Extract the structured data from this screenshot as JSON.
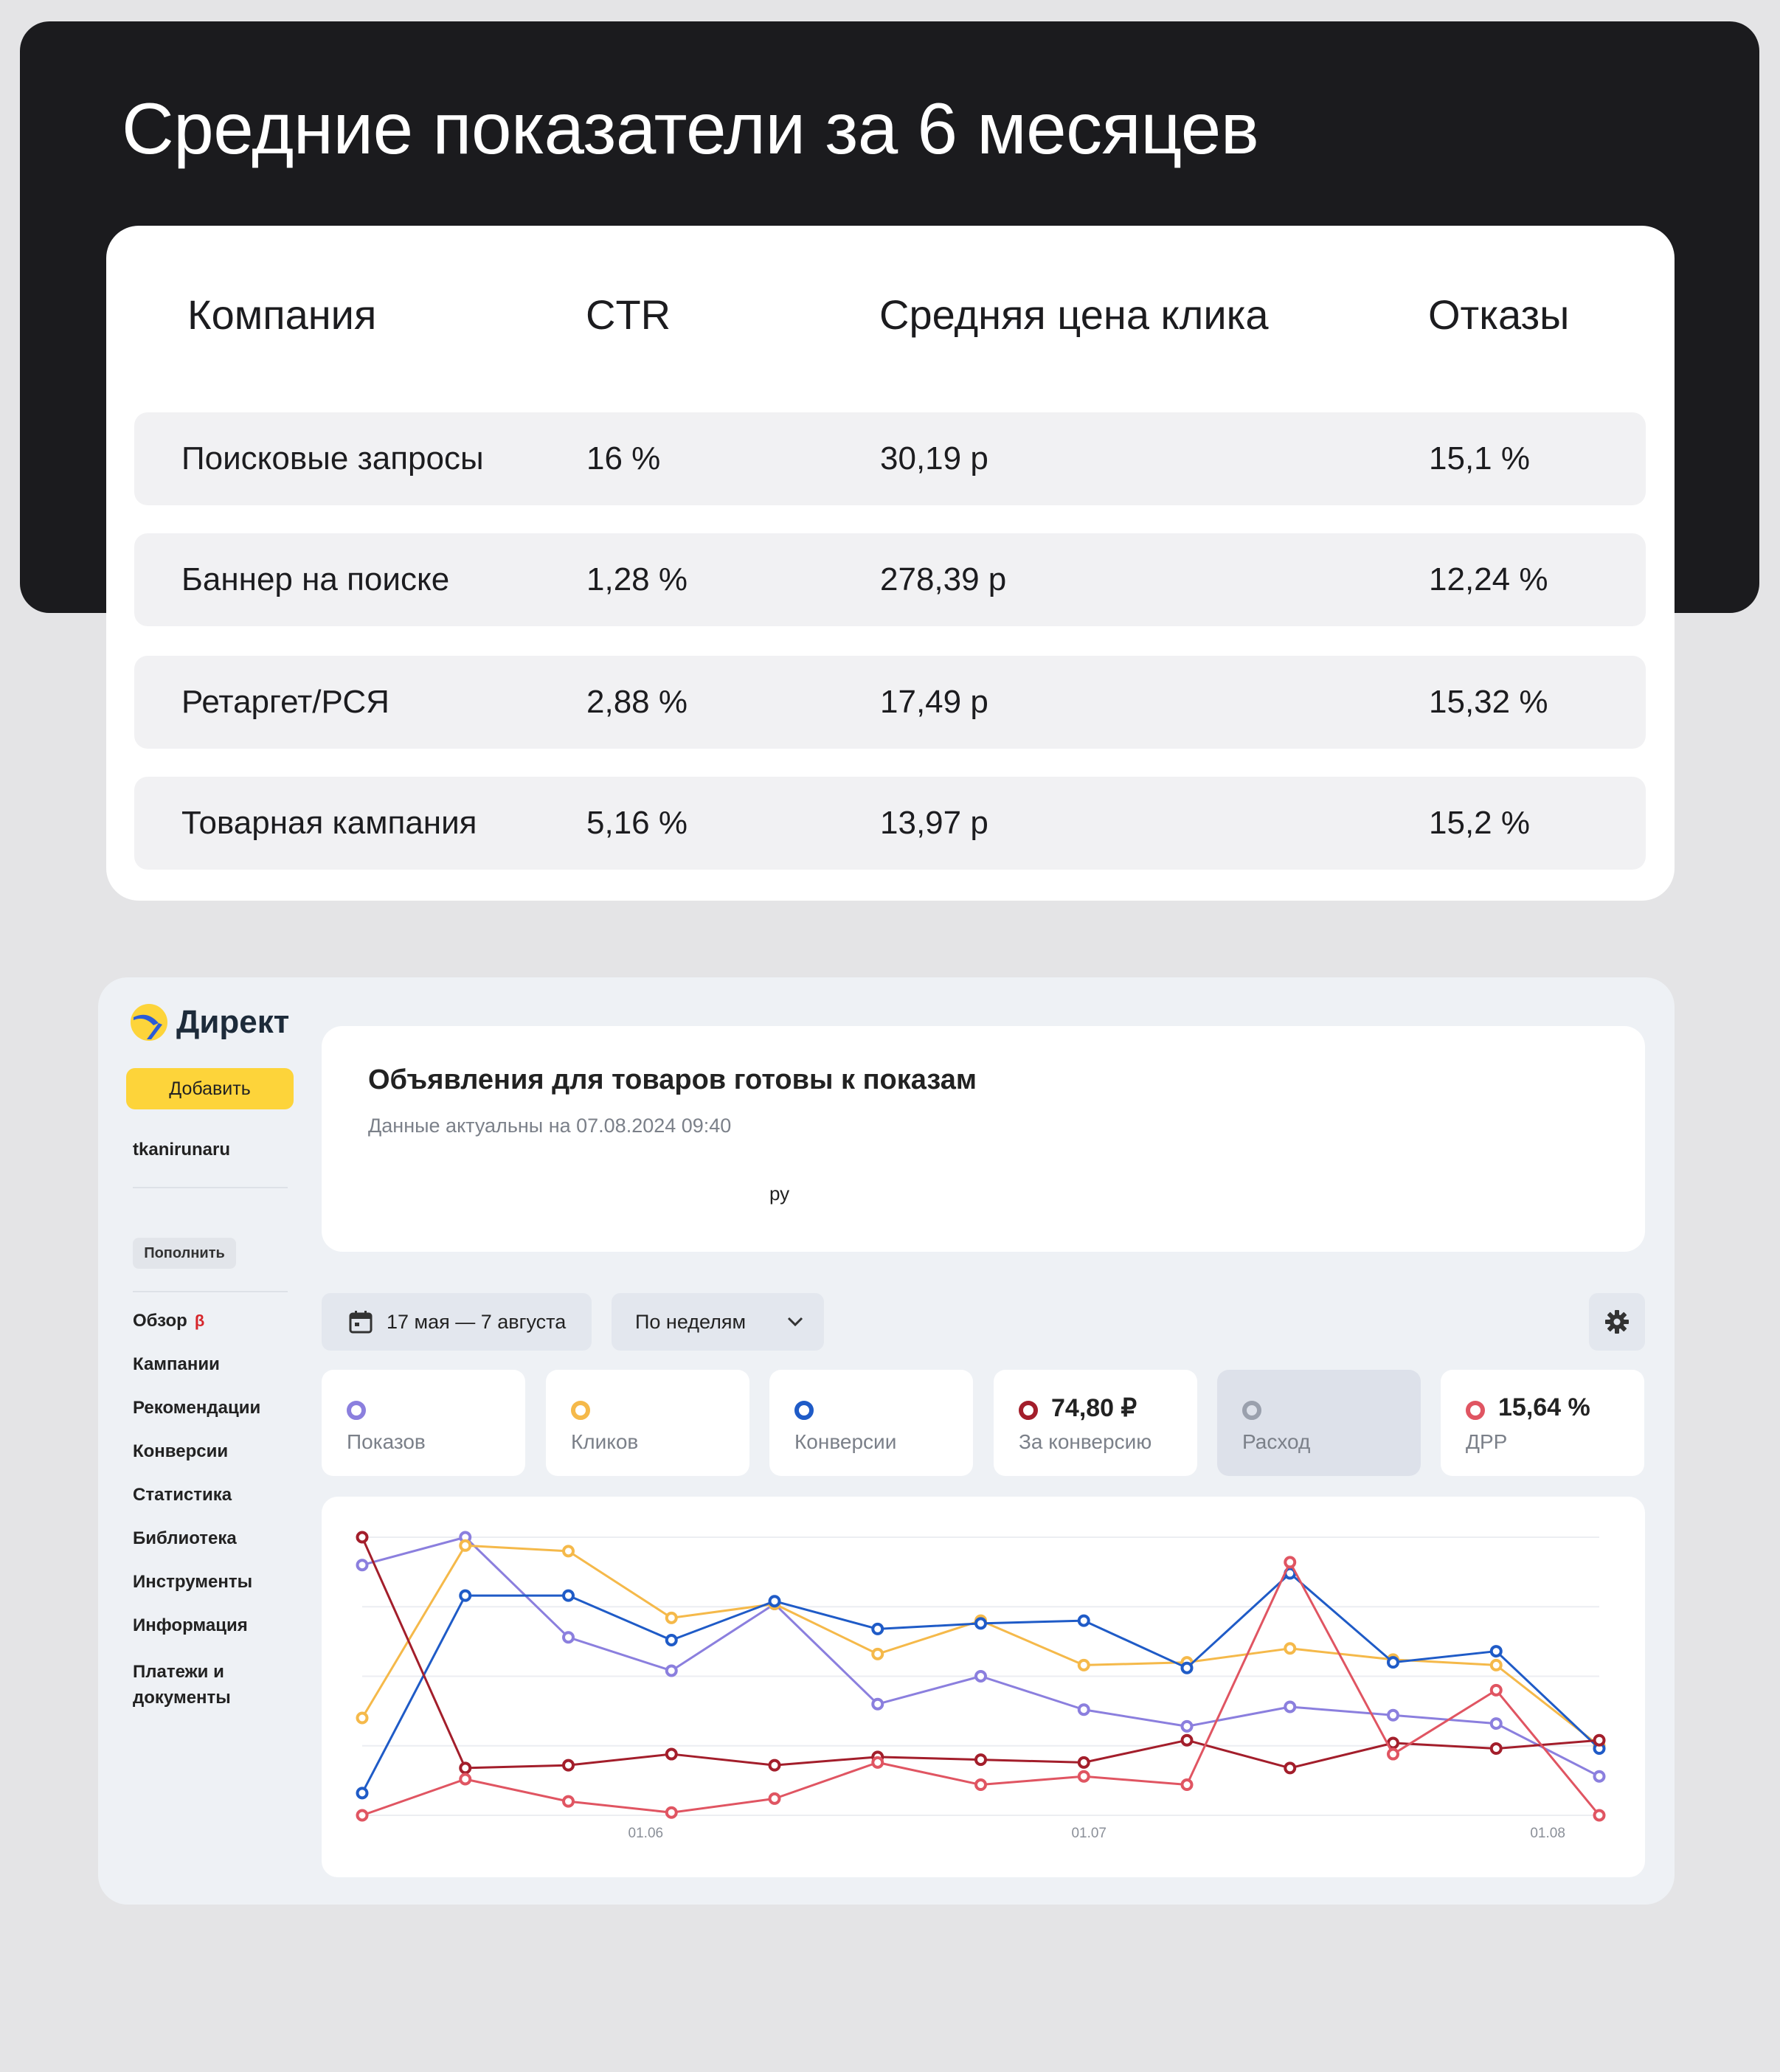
{
  "hero": {
    "title": "Средние показатели за 6 месяцев"
  },
  "table": {
    "headers": [
      "Компания",
      "CTR",
      "Средняя цена клика",
      "Отказы"
    ],
    "rows": [
      [
        "Поисковые запросы",
        "16 %",
        "30,19 р",
        "15,1 %"
      ],
      [
        "Баннер на поиске",
        "1,28 %",
        "278,39 р",
        "12,24 %"
      ],
      [
        "Ретаргет/РСЯ",
        "2,88 %",
        "17,49 р",
        "15,32 %"
      ],
      [
        "Товарная кампания",
        "5,16 %",
        "13,97 р",
        "15,2 %"
      ]
    ]
  },
  "direct": {
    "logo_text": "Директ",
    "add_label": "Добавить",
    "account": "tkanirunaru",
    "topup_label": "Пополнить",
    "nav": {
      "overview": "Обзор",
      "beta": "β",
      "campaigns": "Кампании",
      "recommendations": "Рекомендации",
      "conversions": "Конверсии",
      "statistics": "Статистика",
      "library": "Библиотека",
      "tools": "Инструменты",
      "info": "Информация",
      "payments": "Платежи и документы"
    },
    "notice": {
      "title": "Объявления для товаров готовы к показам",
      "subtitle": "Данные актуальны на 07.08.2024 09:40",
      "fragment": "ру"
    },
    "date_range": "17 мая — 7 августа",
    "period": "По неделям",
    "metrics": {
      "impressions": {
        "label": "Показов",
        "color": "#8b7fde"
      },
      "clicks": {
        "label": "Кликов",
        "color": "#f5b94a"
      },
      "conversions": {
        "label": "Конверсии",
        "color": "#1f5bc7"
      },
      "cpa": {
        "value": "74,80 ₽",
        "label": "За конверсию",
        "color": "#a31e2b"
      },
      "spend": {
        "label": "Расход",
        "color": "#9aa0ad"
      },
      "drr": {
        "value": "15,64 %",
        "label": "ДРР",
        "color": "#e05562"
      }
    }
  },
  "chart_data": {
    "type": "line",
    "x": [
      "1",
      "2",
      "3",
      "4",
      "5",
      "6",
      "7",
      "8",
      "9",
      "10",
      "11",
      "12",
      "13"
    ],
    "x_tick_labels": [
      {
        "label": "01.06",
        "at": 3.75
      },
      {
        "label": "01.07",
        "at": 8.05
      },
      {
        "label": "01.08",
        "at": 12.5
      }
    ],
    "ylim": [
      0,
      100
    ],
    "grid": true,
    "series": [
      {
        "name": "Показов",
        "color": "#8b7fde",
        "values": [
          90,
          100,
          64,
          52,
          76,
          40,
          50,
          38,
          32,
          39,
          36,
          33,
          14
        ]
      },
      {
        "name": "Кликов",
        "color": "#f5b94a",
        "values": [
          35,
          97,
          95,
          71,
          76,
          58,
          70,
          54,
          55,
          60,
          56,
          54,
          25
        ]
      },
      {
        "name": "Конверсии",
        "color": "#1f5bc7",
        "values": [
          8,
          79,
          79,
          63,
          77,
          67,
          69,
          70,
          53,
          87,
          55,
          59,
          24
        ]
      },
      {
        "name": "За конверсию",
        "color": "#a31e2b",
        "values": [
          100,
          17,
          18,
          22,
          18,
          21,
          20,
          19,
          27,
          17,
          26,
          24,
          27
        ]
      },
      {
        "name": "ДРР",
        "color": "#e05562",
        "values": [
          0,
          13,
          5,
          1,
          6,
          19,
          11,
          14,
          11,
          91,
          22,
          45,
          0
        ]
      }
    ]
  }
}
